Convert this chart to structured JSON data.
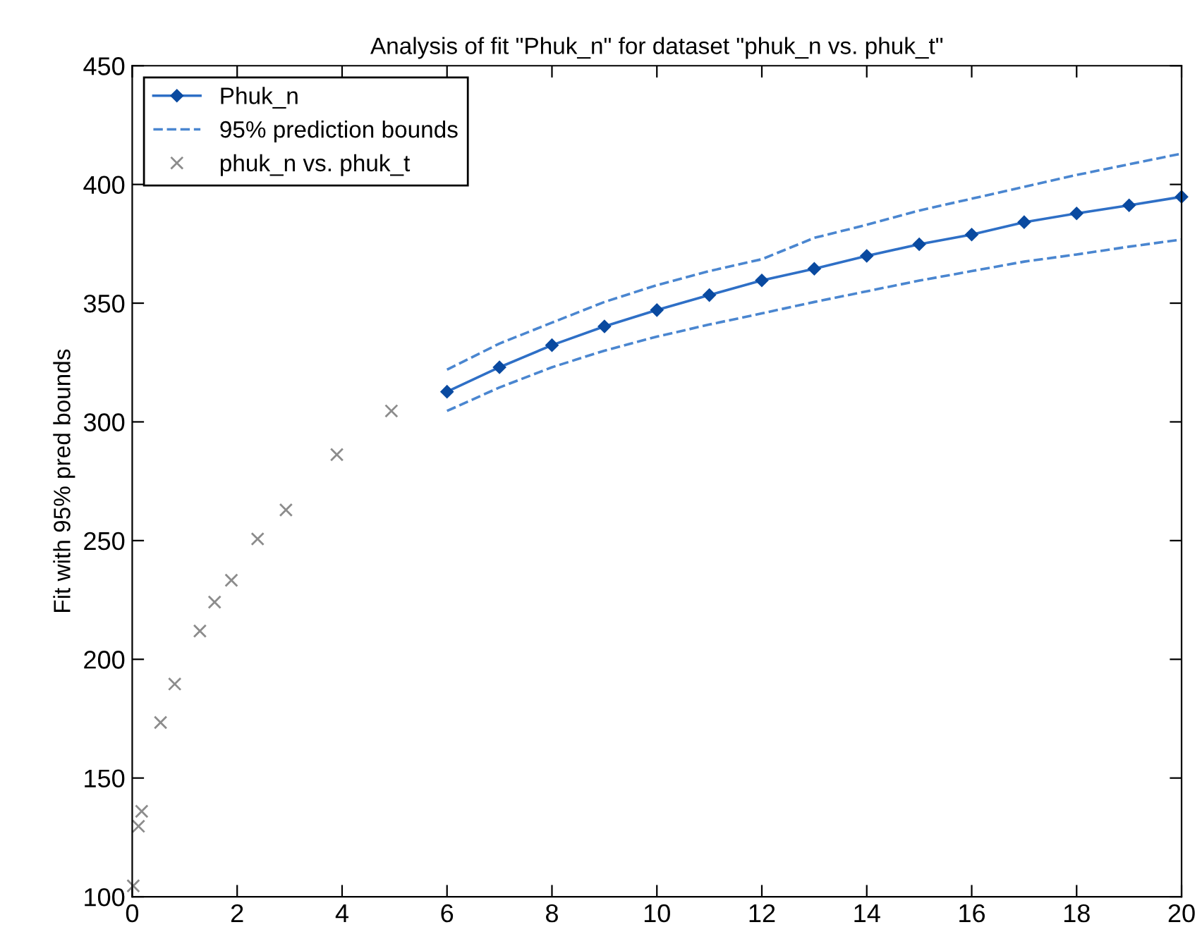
{
  "chart_data": {
    "type": "line",
    "title": "Analysis of fit \"Phuk_n\" for dataset \"phuk_n vs. phuk_t\"",
    "ylabel": "Fit with 95% pred bounds",
    "xlim": [
      0,
      20
    ],
    "ylim": [
      100,
      450
    ],
    "xticks": [
      0,
      2,
      4,
      6,
      8,
      10,
      12,
      14,
      16,
      18,
      20
    ],
    "yticks": [
      100,
      150,
      200,
      250,
      300,
      350,
      400,
      450
    ],
    "grid": false,
    "legend": "top left",
    "series": [
      {
        "name": "Phuk_n",
        "color": "#2e6fc6",
        "marker": "diamond",
        "line_style": "solid",
        "x": [
          6,
          7,
          8,
          9,
          10,
          11,
          12,
          13,
          14,
          15,
          16,
          17,
          18,
          19,
          20
        ],
        "values": [
          312.7,
          323,
          332.3,
          340.2,
          347.1,
          353.4,
          359.6,
          364.5,
          369.9,
          374.8,
          378.9,
          384.1,
          387.8,
          391.2,
          394.8
        ]
      },
      {
        "name": "95% prediction bounds",
        "color": "#4a86d0",
        "marker": "none",
        "line_style": "dashed",
        "x": [
          6,
          7,
          8,
          9,
          10,
          11,
          12,
          13,
          14,
          15,
          16,
          17,
          18,
          19,
          20
        ],
        "values": [
          322,
          333,
          341.8,
          350.5,
          357.6,
          363.5,
          368.5,
          377.5,
          383,
          389,
          394,
          399,
          404,
          408.5,
          413
        ]
      },
      {
        "color": "#4a86d0",
        "marker": "none",
        "line_style": "dashed",
        "x": [
          6,
          7,
          8,
          9,
          10,
          11,
          12,
          13,
          14,
          15,
          16,
          17,
          18,
          19,
          20
        ],
        "values": [
          304.6,
          314.5,
          323,
          330,
          335.9,
          341,
          345.7,
          350.5,
          355,
          359.5,
          363.5,
          367.5,
          370.5,
          373.8,
          376.8
        ]
      },
      {
        "name": "phuk_n vs. phuk_t",
        "type": "scatter",
        "color": "#8c8c8c",
        "marker": "cross",
        "x": [
          0.02,
          0.12,
          0.18,
          0.54,
          0.81,
          1.29,
          1.57,
          1.89,
          2.39,
          2.93,
          3.9,
          4.94
        ],
        "values": [
          104.6,
          129.7,
          136,
          173.4,
          189.6,
          211.9,
          224.1,
          233.3,
          250.7,
          262.9,
          286.2,
          304.6
        ]
      }
    ]
  }
}
